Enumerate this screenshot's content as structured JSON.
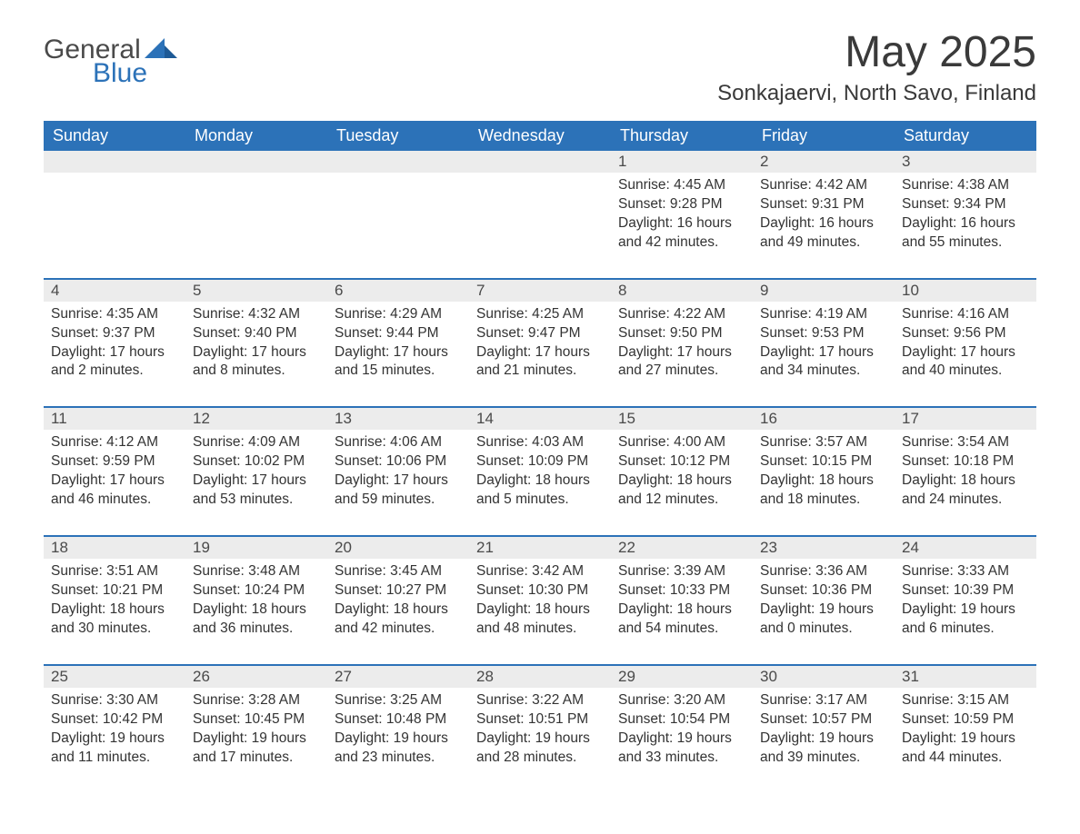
{
  "logo": {
    "general": "General",
    "blue": "Blue"
  },
  "title": "May 2025",
  "location": "Sonkajaervi, North Savo, Finland",
  "colors": {
    "header_bg": "#2c72b8",
    "header_text": "#ffffff",
    "daynum_bg": "#ececec",
    "text": "#333333",
    "rule": "#2c72b8",
    "logo_blue": "#2c72b8",
    "logo_gray": "#4a4a4a"
  },
  "day_names": [
    "Sunday",
    "Monday",
    "Tuesday",
    "Wednesday",
    "Thursday",
    "Friday",
    "Saturday"
  ],
  "weeks": [
    [
      null,
      null,
      null,
      null,
      {
        "n": "1",
        "sr": "4:45 AM",
        "ss": "9:28 PM",
        "dl": "16 hours and 42 minutes."
      },
      {
        "n": "2",
        "sr": "4:42 AM",
        "ss": "9:31 PM",
        "dl": "16 hours and 49 minutes."
      },
      {
        "n": "3",
        "sr": "4:38 AM",
        "ss": "9:34 PM",
        "dl": "16 hours and 55 minutes."
      }
    ],
    [
      {
        "n": "4",
        "sr": "4:35 AM",
        "ss": "9:37 PM",
        "dl": "17 hours and 2 minutes."
      },
      {
        "n": "5",
        "sr": "4:32 AM",
        "ss": "9:40 PM",
        "dl": "17 hours and 8 minutes."
      },
      {
        "n": "6",
        "sr": "4:29 AM",
        "ss": "9:44 PM",
        "dl": "17 hours and 15 minutes."
      },
      {
        "n": "7",
        "sr": "4:25 AM",
        "ss": "9:47 PM",
        "dl": "17 hours and 21 minutes."
      },
      {
        "n": "8",
        "sr": "4:22 AM",
        "ss": "9:50 PM",
        "dl": "17 hours and 27 minutes."
      },
      {
        "n": "9",
        "sr": "4:19 AM",
        "ss": "9:53 PM",
        "dl": "17 hours and 34 minutes."
      },
      {
        "n": "10",
        "sr": "4:16 AM",
        "ss": "9:56 PM",
        "dl": "17 hours and 40 minutes."
      }
    ],
    [
      {
        "n": "11",
        "sr": "4:12 AM",
        "ss": "9:59 PM",
        "dl": "17 hours and 46 minutes."
      },
      {
        "n": "12",
        "sr": "4:09 AM",
        "ss": "10:02 PM",
        "dl": "17 hours and 53 minutes."
      },
      {
        "n": "13",
        "sr": "4:06 AM",
        "ss": "10:06 PM",
        "dl": "17 hours and 59 minutes."
      },
      {
        "n": "14",
        "sr": "4:03 AM",
        "ss": "10:09 PM",
        "dl": "18 hours and 5 minutes."
      },
      {
        "n": "15",
        "sr": "4:00 AM",
        "ss": "10:12 PM",
        "dl": "18 hours and 12 minutes."
      },
      {
        "n": "16",
        "sr": "3:57 AM",
        "ss": "10:15 PM",
        "dl": "18 hours and 18 minutes."
      },
      {
        "n": "17",
        "sr": "3:54 AM",
        "ss": "10:18 PM",
        "dl": "18 hours and 24 minutes."
      }
    ],
    [
      {
        "n": "18",
        "sr": "3:51 AM",
        "ss": "10:21 PM",
        "dl": "18 hours and 30 minutes."
      },
      {
        "n": "19",
        "sr": "3:48 AM",
        "ss": "10:24 PM",
        "dl": "18 hours and 36 minutes."
      },
      {
        "n": "20",
        "sr": "3:45 AM",
        "ss": "10:27 PM",
        "dl": "18 hours and 42 minutes."
      },
      {
        "n": "21",
        "sr": "3:42 AM",
        "ss": "10:30 PM",
        "dl": "18 hours and 48 minutes."
      },
      {
        "n": "22",
        "sr": "3:39 AM",
        "ss": "10:33 PM",
        "dl": "18 hours and 54 minutes."
      },
      {
        "n": "23",
        "sr": "3:36 AM",
        "ss": "10:36 PM",
        "dl": "19 hours and 0 minutes."
      },
      {
        "n": "24",
        "sr": "3:33 AM",
        "ss": "10:39 PM",
        "dl": "19 hours and 6 minutes."
      }
    ],
    [
      {
        "n": "25",
        "sr": "3:30 AM",
        "ss": "10:42 PM",
        "dl": "19 hours and 11 minutes."
      },
      {
        "n": "26",
        "sr": "3:28 AM",
        "ss": "10:45 PM",
        "dl": "19 hours and 17 minutes."
      },
      {
        "n": "27",
        "sr": "3:25 AM",
        "ss": "10:48 PM",
        "dl": "19 hours and 23 minutes."
      },
      {
        "n": "28",
        "sr": "3:22 AM",
        "ss": "10:51 PM",
        "dl": "19 hours and 28 minutes."
      },
      {
        "n": "29",
        "sr": "3:20 AM",
        "ss": "10:54 PM",
        "dl": "19 hours and 33 minutes."
      },
      {
        "n": "30",
        "sr": "3:17 AM",
        "ss": "10:57 PM",
        "dl": "19 hours and 39 minutes."
      },
      {
        "n": "31",
        "sr": "3:15 AM",
        "ss": "10:59 PM",
        "dl": "19 hours and 44 minutes."
      }
    ]
  ],
  "labels": {
    "sunrise": "Sunrise: ",
    "sunset": "Sunset: ",
    "daylight": "Daylight: "
  }
}
